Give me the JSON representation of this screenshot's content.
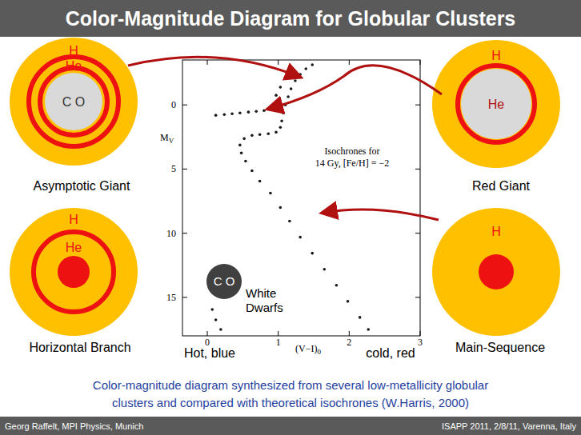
{
  "title": "Color-Magnitude Diagram for Globular Clusters",
  "chart_data": {
    "type": "scatter",
    "x_label": {
      "text": "(V−I)",
      "sub": "0"
    },
    "y_label": {
      "text": "M",
      "sub": "V"
    },
    "annotation": [
      "Isochrones for",
      "14 Gy, [Fe/H] = −2"
    ],
    "x_end_labels": [
      "Hot, blue",
      "cold, red"
    ],
    "color": "#1a1a1a",
    "marker": "circle",
    "grid": false,
    "xlim": [
      -0.35,
      3
    ],
    "ylim": [
      18,
      -3.5
    ],
    "xticks": [
      0,
      1,
      2,
      3
    ],
    "yticks": [
      0,
      5,
      10,
      15
    ],
    "x": [
      2.27,
      2.15,
      1.98,
      1.82,
      1.65,
      1.48,
      1.31,
      1.16,
      1.03,
      0.89,
      0.74,
      0.63,
      0.54,
      0.48,
      0.46,
      0.52,
      0.63,
      0.74,
      0.86,
      0.97,
      1.03,
      1.05,
      1.07,
      1.1,
      1.14,
      1.18,
      1.24,
      1.31,
      1.39,
      1.48,
      0.12,
      0.24,
      0.35,
      0.46,
      0.58,
      0.69,
      0.8,
      0.89,
      0.97,
      1.03,
      0.07,
      0.12,
      0.19
    ],
    "values": [
      17.5,
      16.56,
      15.31,
      14.06,
      12.81,
      11.56,
      10.31,
      9.06,
      8.0,
      6.88,
      5.94,
      5.13,
      4.38,
      3.75,
      3.13,
      2.63,
      2.38,
      2.31,
      2.25,
      2.13,
      1.75,
      1.25,
      0.63,
      0,
      -0.63,
      -1.25,
      -1.88,
      -2.38,
      -2.81,
      -3.13,
      0.81,
      0.75,
      0.69,
      0.63,
      0.56,
      0.5,
      0.44,
      0.38,
      -0.75,
      -1.38,
      15.94,
      16.75,
      17.5
    ]
  },
  "stars": [
    {
      "name": "Asymptotic Giant",
      "shells": [
        "H",
        "He",
        "C O"
      ]
    },
    {
      "name": "Red Giant",
      "shells": [
        "H",
        "He"
      ]
    },
    {
      "name": "Horizontal Branch",
      "shells": [
        "H",
        "He"
      ]
    },
    {
      "name": "Main-Sequence",
      "shells": [
        "H"
      ]
    }
  ],
  "white_dwarf": {
    "core": "C O",
    "label": [
      "White",
      "Dwarfs"
    ]
  },
  "caption": [
    "Color-magnitude diagram synthesized from several low-metallicity globular",
    "clusters and compared with theoretical isochrones (W.Harris, 2000)"
  ],
  "footer": {
    "left": "Georg Raffelt, MPI Physics, Munich",
    "right": "ISAPP 2011, 2/8/11, Varenna, Italy"
  }
}
